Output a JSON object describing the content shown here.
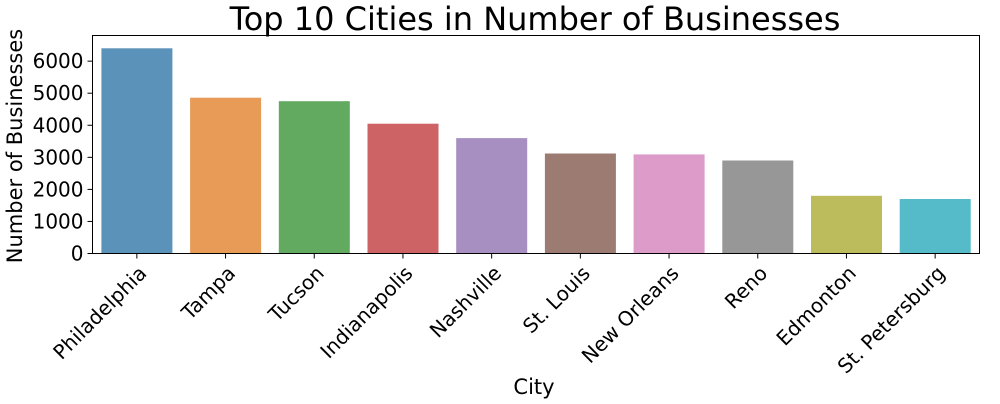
{
  "chart_data": {
    "type": "bar",
    "title": "Top 10 Cities in Number of Businesses",
    "xlabel": "City",
    "ylabel": "Number of Businesses",
    "categories": [
      "Philadelphia",
      "Tampa",
      "Tucson",
      "Indianapolis",
      "Nashville",
      "St. Louis",
      "New Orleans",
      "Reno",
      "Edmonton",
      "St. Petersburg"
    ],
    "values": [
      6400,
      4860,
      4750,
      4050,
      3600,
      3120,
      3090,
      2900,
      1800,
      1700
    ],
    "ylim": [
      0,
      6800
    ],
    "yticks": [
      0,
      1000,
      2000,
      3000,
      4000,
      5000,
      6000
    ],
    "colors": [
      "#5a92b9",
      "#e89b56",
      "#61aa5f",
      "#cd6364",
      "#a78fc1",
      "#9c7b72",
      "#dd9bca",
      "#979797",
      "#bcbc5d",
      "#55bbc8"
    ],
    "grid": false
  }
}
